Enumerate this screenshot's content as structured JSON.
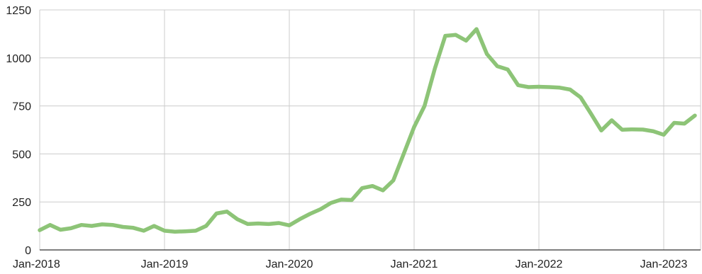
{
  "chart_data": {
    "type": "line",
    "title": "",
    "xlabel": "",
    "ylabel": "",
    "ylim": [
      0,
      1250
    ],
    "yticks": [
      0,
      250,
      500,
      750,
      1000,
      1250
    ],
    "ytick_labels": [
      "0",
      "250",
      "500",
      "750",
      "1000",
      "1250"
    ],
    "xlim": [
      "2018-01",
      "2023-04"
    ],
    "xticks": [
      "2018-01",
      "2019-01",
      "2020-01",
      "2021-01",
      "2022-01",
      "2023-01"
    ],
    "xtick_labels": [
      "Jan-2018",
      "Jan-2019",
      "Jan-2020",
      "Jan-2021",
      "Jan-2022",
      "Jan-2023"
    ],
    "grid": true,
    "legend": "none",
    "line_color": "#8dc477",
    "grid_color": "#cccccc",
    "x": [
      "2018-01",
      "2018-02",
      "2018-03",
      "2018-04",
      "2018-05",
      "2018-06",
      "2018-07",
      "2018-08",
      "2018-09",
      "2018-10",
      "2018-11",
      "2018-12",
      "2019-01",
      "2019-02",
      "2019-03",
      "2019-04",
      "2019-05",
      "2019-06",
      "2019-07",
      "2019-08",
      "2019-09",
      "2019-10",
      "2019-11",
      "2019-12",
      "2020-01",
      "2020-02",
      "2020-03",
      "2020-04",
      "2020-05",
      "2020-06",
      "2020-07",
      "2020-08",
      "2020-09",
      "2020-10",
      "2020-11",
      "2020-12",
      "2021-01",
      "2021-02",
      "2021-03",
      "2021-04",
      "2021-05",
      "2021-06",
      "2021-07",
      "2021-08",
      "2021-09",
      "2021-10",
      "2021-11",
      "2021-12",
      "2022-01",
      "2022-02",
      "2022-03",
      "2022-04",
      "2022-05",
      "2022-06",
      "2022-07",
      "2022-08",
      "2022-09",
      "2022-10",
      "2022-11",
      "2022-12",
      "2023-01",
      "2023-02",
      "2023-03",
      "2023-04"
    ],
    "series": [
      {
        "values": [
          103,
          130,
          105,
          113,
          130,
          125,
          133,
          130,
          120,
          115,
          100,
          125,
          100,
          95,
          97,
          100,
          125,
          190,
          200,
          160,
          135,
          138,
          135,
          140,
          128,
          160,
          188,
          212,
          245,
          262,
          260,
          322,
          333,
          310,
          362,
          500,
          640,
          750,
          945,
          1115,
          1120,
          1090,
          1150,
          1020,
          957,
          940,
          858,
          848,
          850,
          848,
          845,
          835,
          795,
          710,
          622,
          675,
          626,
          628,
          627,
          618,
          600,
          662,
          658,
          700
        ]
      }
    ]
  }
}
